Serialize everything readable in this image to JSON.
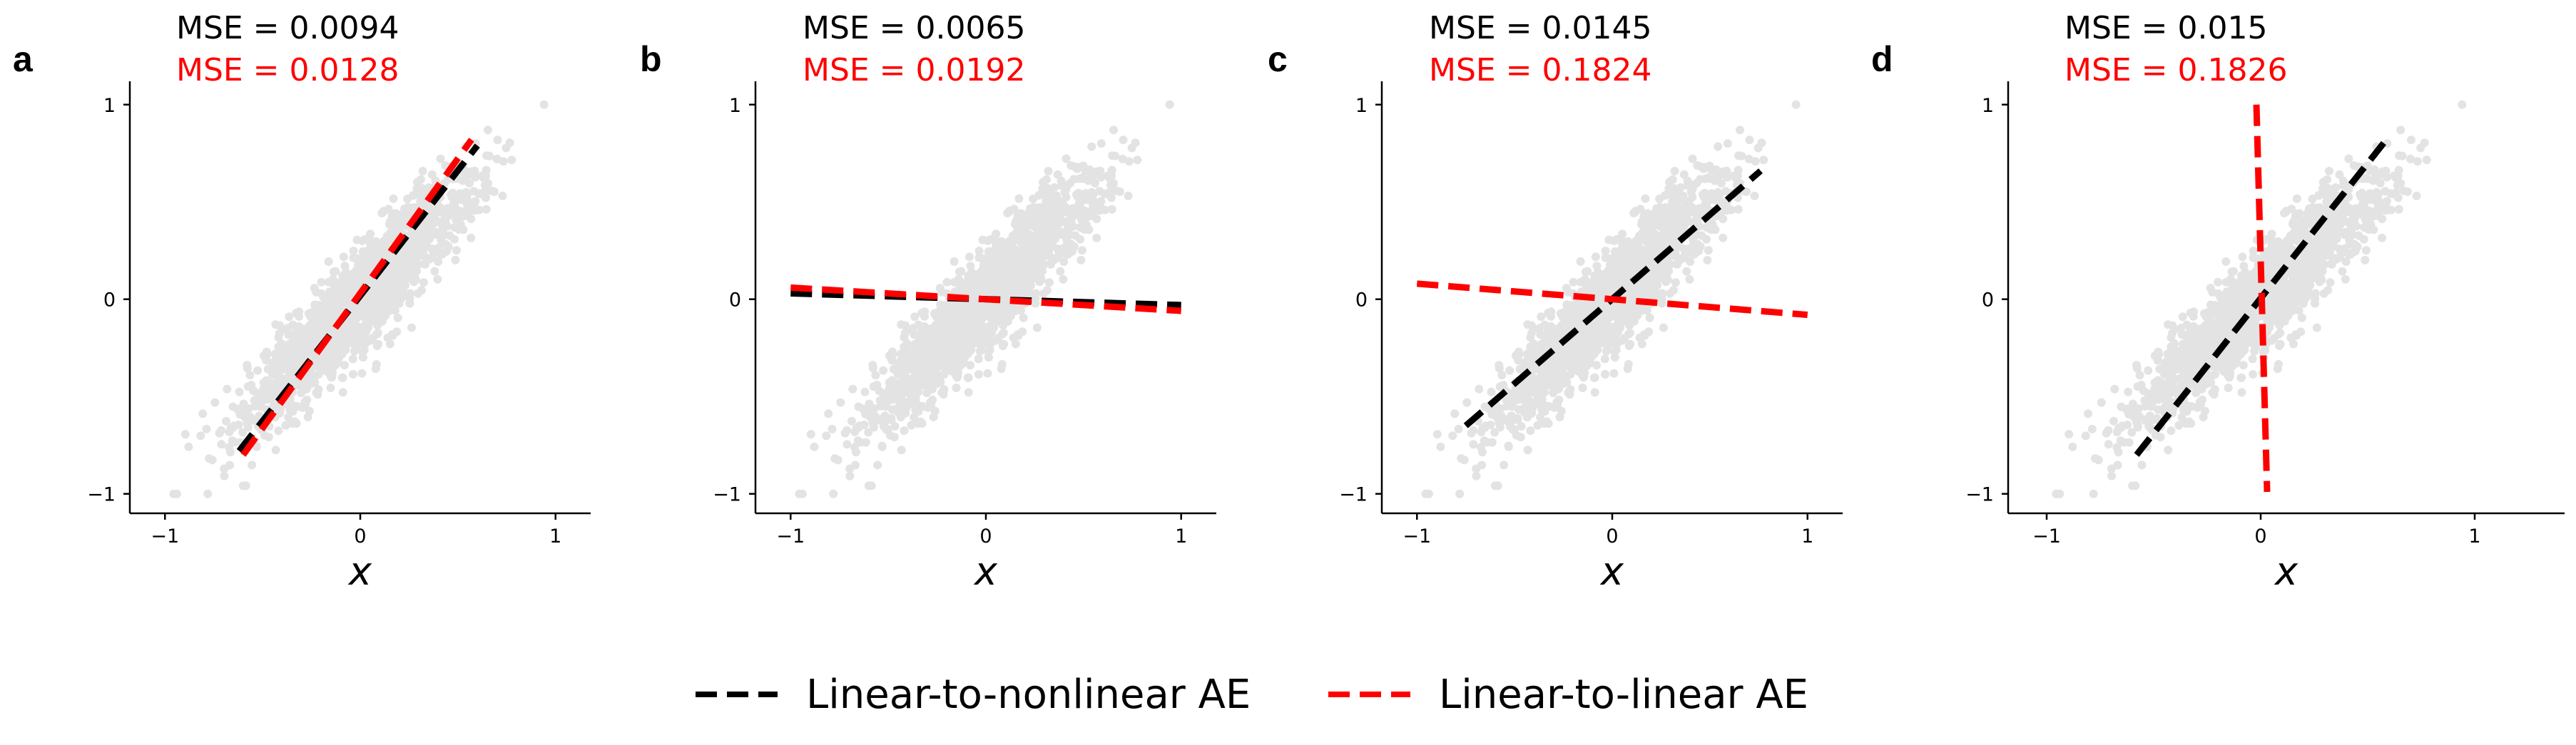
{
  "colors": {
    "scatter": "#e3e3e3",
    "nonlinear_line": "#000000",
    "linear_line": "#ff0000",
    "mse_nonlinear_text": "#000000",
    "mse_linear_text": "#ff0000"
  },
  "legend": {
    "items": [
      {
        "label": "Linear-to-nonlinear AE",
        "color": "#000000",
        "style": "dashed"
      },
      {
        "label": "Linear-to-linear AE",
        "color": "#ff0000",
        "style": "dashed"
      }
    ],
    "placement": "bottom-center"
  },
  "chart_data": [
    {
      "type": "scatter",
      "panel_label": "a",
      "mse_nonlinear": "MSE = 0.0094",
      "mse_linear": "MSE = 0.0128",
      "xlabel": "x",
      "ylabel": "",
      "xlim": [
        -1.18,
        1.18
      ],
      "ylim": [
        -1.1,
        1.12
      ],
      "xticks": [
        -1,
        0,
        1
      ],
      "yticks": [
        -1,
        0,
        1
      ],
      "xtick_labels": [
        "−1",
        "0",
        "1"
      ],
      "ytick_labels": [
        "−1",
        "0",
        "1"
      ],
      "scatter": {
        "slope": 1.0,
        "count": 1600,
        "description_free": true
      },
      "series": [
        {
          "name": "Linear-to-nonlinear AE",
          "x": [
            -0.62,
            0.6
          ],
          "y": [
            -0.78,
            0.79
          ]
        },
        {
          "name": "Linear-to-linear AE",
          "x": [
            -0.6,
            0.57
          ],
          "y": [
            -0.8,
            0.82
          ]
        }
      ]
    },
    {
      "type": "scatter",
      "panel_label": "b",
      "mse_nonlinear": "MSE = 0.0065",
      "mse_linear": "MSE = 0.0192",
      "xlabel": "x",
      "ylabel": "",
      "xlim": [
        -1.18,
        1.18
      ],
      "ylim": [
        -1.1,
        1.12
      ],
      "xticks": [
        -1,
        0,
        1
      ],
      "yticks": [
        -1,
        0,
        1
      ],
      "xtick_labels": [
        "−1",
        "0",
        "1"
      ],
      "ytick_labels": [
        "−1",
        "0",
        "1"
      ],
      "scatter": {
        "slope": 1.0,
        "count": 1600
      },
      "series": [
        {
          "name": "Linear-to-nonlinear AE",
          "x": [
            -1.0,
            1.0
          ],
          "y": [
            0.03,
            -0.03
          ]
        },
        {
          "name": "Linear-to-linear AE",
          "x": [
            -1.0,
            1.0
          ],
          "y": [
            0.06,
            -0.06
          ]
        }
      ]
    },
    {
      "type": "scatter",
      "panel_label": "c",
      "mse_nonlinear": "MSE = 0.0145",
      "mse_linear": "MSE = 0.1824",
      "xlabel": "x",
      "ylabel": "",
      "xlim": [
        -1.18,
        1.18
      ],
      "ylim": [
        -1.1,
        1.12
      ],
      "xticks": [
        -1,
        0,
        1
      ],
      "yticks": [
        -1,
        0,
        1
      ],
      "xtick_labels": [
        "−1",
        "0",
        "1"
      ],
      "ytick_labels": [
        "−1",
        "0",
        "1"
      ],
      "scatter": {
        "slope": 1.0,
        "count": 1600
      },
      "series": [
        {
          "name": "Linear-to-nonlinear AE",
          "x": [
            -0.75,
            0.76
          ],
          "y": [
            -0.65,
            0.66
          ]
        },
        {
          "name": "Linear-to-linear AE",
          "x": [
            -1.0,
            1.0
          ],
          "y": [
            0.08,
            -0.08
          ]
        }
      ]
    },
    {
      "type": "scatter",
      "panel_label": "d",
      "mse_nonlinear": "MSE = 0.015",
      "mse_linear": "MSE = 0.1826",
      "xlabel": "x",
      "ylabel": "",
      "xlim": [
        -1.18,
        1.42
      ],
      "ylim": [
        -1.1,
        1.12
      ],
      "xticks": [
        -1,
        0,
        1
      ],
      "yticks": [
        -1,
        0,
        1
      ],
      "xtick_labels": [
        "−1",
        "0",
        "1"
      ],
      "ytick_labels": [
        "−1",
        "0",
        "1"
      ],
      "scatter": {
        "slope": 1.0,
        "count": 1600
      },
      "series": [
        {
          "name": "Linear-to-nonlinear AE",
          "x": [
            -0.58,
            0.58
          ],
          "y": [
            -0.8,
            0.81
          ]
        },
        {
          "name": "Linear-to-linear AE",
          "x": [
            -0.02,
            0.03
          ],
          "y": [
            1.0,
            -0.99
          ]
        }
      ]
    }
  ]
}
